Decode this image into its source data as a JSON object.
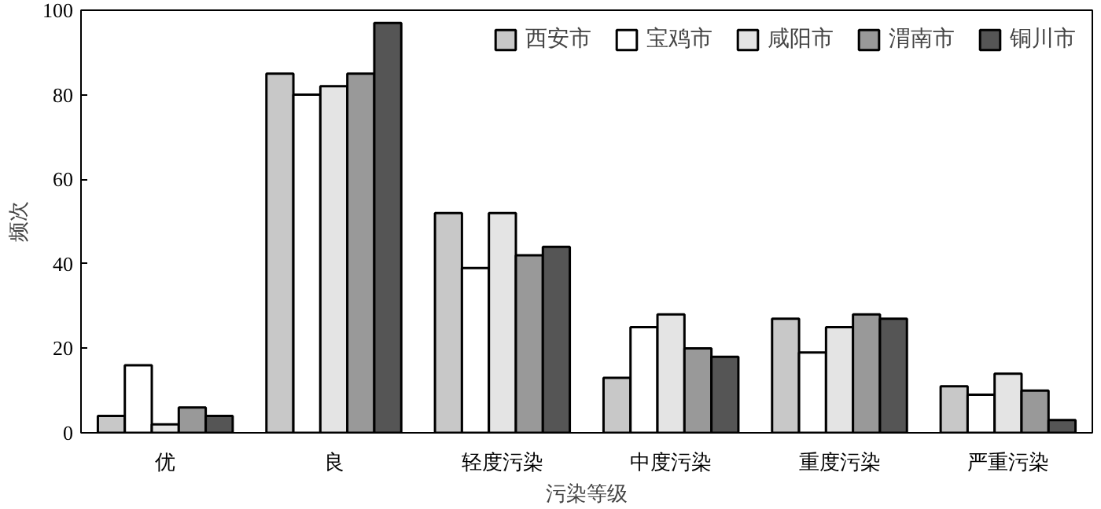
{
  "chart_data": {
    "type": "bar",
    "xlabel": "污染等级",
    "ylabel": "频次",
    "categories": [
      "优",
      "良",
      "轻度污染",
      "中度污染",
      "重度污染",
      "严重污染"
    ],
    "series": [
      {
        "name": "西安市",
        "color": "#c8c8c8",
        "values": [
          4,
          85,
          52,
          13,
          27,
          11
        ]
      },
      {
        "name": "宝鸡市",
        "color": "#ffffff",
        "values": [
          16,
          80,
          39,
          25,
          19,
          9
        ]
      },
      {
        "name": "咸阳市",
        "color": "#e4e4e4",
        "values": [
          2,
          82,
          52,
          28,
          25,
          14
        ]
      },
      {
        "name": "渭南市",
        "color": "#999999",
        "values": [
          6,
          85,
          42,
          20,
          28,
          10
        ]
      },
      {
        "name": "铜川市",
        "color": "#555555",
        "values": [
          4,
          97,
          44,
          18,
          27,
          3
        ]
      }
    ],
    "ylim": [
      0,
      100
    ],
    "yticks": [
      0,
      20,
      40,
      60,
      80,
      100
    ],
    "grid": false,
    "legend": "top right"
  }
}
